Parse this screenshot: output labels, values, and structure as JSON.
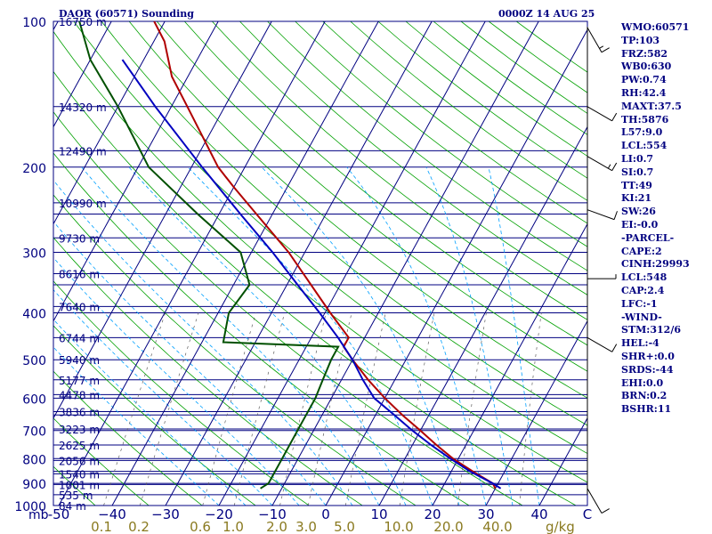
{
  "header": {
    "station": "DAOR (60571) Sounding",
    "time": "0000Z 14 AUG 25"
  },
  "indices": [
    "WMO:60571",
    "TP:103",
    "FRZ:582",
    "WB0:630",
    "PW:0.74",
    "RH:42.4",
    "MAXT:37.5",
    "TH:5876",
    "L57:9.0",
    "LCL:554",
    "LI:0.7",
    "SI:0.7",
    "TT:49",
    "KI:21",
    "SW:26",
    "EI:-0.0",
    "-PARCEL-",
    "CAPE:2",
    "CINH:29993",
    "LCL:548",
    "CAP:2.4",
    "LFC:-1",
    "-WIND-",
    "STM:312/6",
    "HEL:-4",
    "SHR+:0.0",
    "SRDS:-44",
    "EHI:0.0",
    "BRN:0.2",
    "BSHR:11"
  ],
  "chart_data": {
    "type": "line",
    "title": "DAOR (60571) Sounding",
    "subtitle": "0000Z 14 AUG 25",
    "xlabel": "C",
    "ylabel": "mb",
    "xlim": [
      -50,
      50
    ],
    "ylim": [
      1000,
      100
    ],
    "y_scale": "log",
    "pressure_ticks": [
      100,
      200,
      300,
      400,
      500,
      600,
      700,
      800,
      900,
      1000
    ],
    "temp_ticks": [
      -50,
      -40,
      -30,
      -20,
      -10,
      0,
      10,
      20,
      30,
      40
    ],
    "temp_tick_labels": [
      "-50",
      "−40",
      "−30",
      "−20",
      "−10",
      "0",
      "10",
      "20",
      "30",
      "40"
    ],
    "mixing_ratio_labels": [
      "0.1",
      "0.2",
      "0.6",
      "1.0",
      "2.0",
      "3.0",
      "5.0",
      "10.0",
      "20.0",
      "40.0"
    ],
    "mixing_ratio_unit": "g/kg",
    "height_labels": [
      {
        "p": 100,
        "label": "16750 m"
      },
      {
        "p": 150,
        "label": "14320 m"
      },
      {
        "p": 185,
        "label": "12490 m"
      },
      {
        "p": 237,
        "label": "10990 m"
      },
      {
        "p": 280,
        "label": "9730 m"
      },
      {
        "p": 332,
        "label": "8616 m"
      },
      {
        "p": 388,
        "label": "7640 m"
      },
      {
        "p": 450,
        "label": "6744 m"
      },
      {
        "p": 500,
        "label": "5940 m"
      },
      {
        "p": 550,
        "label": "5177 m"
      },
      {
        "p": 590,
        "label": "4478 m"
      },
      {
        "p": 640,
        "label": "3836 m"
      },
      {
        "p": 695,
        "label": "3223 m"
      },
      {
        "p": 750,
        "label": "2625 m"
      },
      {
        "p": 807,
        "label": "2056 m"
      },
      {
        "p": 860,
        "label": "1540 m"
      },
      {
        "p": 905,
        "label": "1001 m"
      },
      {
        "p": 950,
        "label": "535 m"
      },
      {
        "p": 1000,
        "label": "84 m"
      }
    ],
    "series": [
      {
        "name": "Temperature",
        "color": "#b00000",
        "points": [
          [
            922,
            30
          ],
          [
            900,
            29
          ],
          [
            850,
            24
          ],
          [
            800,
            19
          ],
          [
            750,
            14.5
          ],
          [
            700,
            10
          ],
          [
            650,
            5
          ],
          [
            600,
            0
          ],
          [
            550,
            -5
          ],
          [
            500,
            -10
          ],
          [
            470,
            -13
          ],
          [
            450,
            -13
          ],
          [
            400,
            -19
          ],
          [
            300,
            -33
          ],
          [
            250,
            -43
          ],
          [
            220,
            -50
          ],
          [
            200,
            -55
          ],
          [
            150,
            -67
          ],
          [
            130,
            -73
          ],
          [
            110,
            -78
          ],
          [
            100,
            -82
          ]
        ]
      },
      {
        "name": "Dewpoint",
        "color": "#005000",
        "points": [
          [
            922,
            -14
          ],
          [
            900,
            -13
          ],
          [
            850,
            -13
          ],
          [
            800,
            -13
          ],
          [
            700,
            -13
          ],
          [
            600,
            -13
          ],
          [
            550,
            -13.5
          ],
          [
            500,
            -14
          ],
          [
            470,
            -14
          ],
          [
            460,
            -36
          ],
          [
            400,
            -38
          ],
          [
            350,
            -37
          ],
          [
            300,
            -42
          ],
          [
            250,
            -54
          ],
          [
            200,
            -68
          ],
          [
            150,
            -80
          ],
          [
            120,
            -90
          ],
          [
            100,
            -96
          ]
        ]
      },
      {
        "name": "Parcel",
        "color": "#0000c0",
        "points": [
          [
            922,
            31
          ],
          [
            900,
            29
          ],
          [
            850,
            23.5
          ],
          [
            800,
            18.5
          ],
          [
            750,
            13.5
          ],
          [
            700,
            8.5
          ],
          [
            650,
            3.5
          ],
          [
            600,
            -2
          ],
          [
            550,
            -6
          ],
          [
            500,
            -10
          ],
          [
            450,
            -15
          ],
          [
            400,
            -21
          ],
          [
            350,
            -28
          ],
          [
            300,
            -36
          ],
          [
            250,
            -46
          ],
          [
            200,
            -58
          ],
          [
            150,
            -73
          ],
          [
            120,
            -84
          ]
        ]
      }
    ],
    "wind_barbs": [
      {
        "p": 922,
        "dir": 330,
        "kt": 10
      },
      {
        "p": 450,
        "dir": 300,
        "kt": 10
      },
      {
        "p": 340,
        "dir": 270,
        "kt": 5
      },
      {
        "p": 245,
        "dir": 290,
        "kt": 10
      },
      {
        "p": 190,
        "dir": 300,
        "kt": 15
      },
      {
        "p": 150,
        "dir": 300,
        "kt": 10
      },
      {
        "p": 103,
        "dir": 330,
        "kt": 15
      }
    ],
    "grid_colors": {
      "isobar": "#000080",
      "isotherm": "#000080",
      "dry_adiabat": "#00a000",
      "moist_adiabat": "#00a0ff",
      "mixing_ratio": "#606060"
    }
  }
}
